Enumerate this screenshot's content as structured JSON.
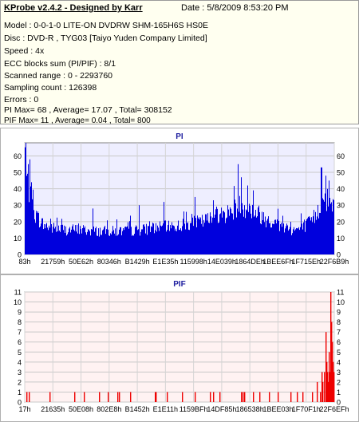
{
  "header": {
    "title": "KProbe v2.4.2 - Designed by Karr",
    "date": "Date : 5/8/2009 8:53:20 PM"
  },
  "info_lines": [
    "Model : 0-0-1-0 LITE-ON DVDRW SHM-165H6S HS0E",
    "Disc : DVD-R , TYG03 [Taiyo Yuden Company Limited]",
    "Speed : 4x",
    "ECC blocks sum (PI/PIF) : 8/1",
    "Scanned range : 0 - 2293760",
    "Sampling count : 126398",
    "Errors : 0",
    "PI Max= 68 , Average= 17.07 , Total= 308152",
    "PIF Max= 11 , Average= 0.04 , Total= 800"
  ],
  "colors": {
    "pi_bars": "#0000dd",
    "pif_bars": "#ee0000",
    "pi_plot_bg": "#eeeeff",
    "pif_plot_bg": "#fff2f2",
    "title_text": "#2020a0"
  },
  "chart_data": [
    {
      "type": "bar",
      "title": "PI",
      "xlabel": "",
      "ylabel": "",
      "ylim": [
        0,
        68
      ],
      "yticks": [
        0,
        10,
        20,
        30,
        40,
        50,
        60
      ],
      "xtick_labels": [
        "83h",
        "21759h",
        "50E62h",
        "80346h",
        "B1429h",
        "E1E35h",
        "115998h",
        "14E039h",
        "1864DEh",
        "1BEE6Fh",
        "1F715Eh",
        "22F6B9h"
      ],
      "max": 68,
      "average": 17.07,
      "grid": true,
      "profile": [
        [
          0.0,
          66
        ],
        [
          0.004,
          48
        ],
        [
          0.012,
          40
        ],
        [
          0.025,
          28
        ],
        [
          0.04,
          24
        ],
        [
          0.06,
          19
        ],
        [
          0.09,
          17
        ],
        [
          0.13,
          16
        ],
        [
          0.18,
          16
        ],
        [
          0.23,
          15
        ],
        [
          0.28,
          15
        ],
        [
          0.33,
          15
        ],
        [
          0.38,
          16
        ],
        [
          0.42,
          17
        ],
        [
          0.47,
          18
        ],
        [
          0.52,
          19
        ],
        [
          0.57,
          21
        ],
        [
          0.62,
          24
        ],
        [
          0.66,
          27
        ],
        [
          0.685,
          30
        ],
        [
          0.7,
          32
        ],
        [
          0.72,
          30
        ],
        [
          0.75,
          27
        ],
        [
          0.78,
          23
        ],
        [
          0.81,
          20
        ],
        [
          0.84,
          17
        ],
        [
          0.87,
          16
        ],
        [
          0.9,
          17
        ],
        [
          0.93,
          22
        ],
        [
          0.955,
          30
        ],
        [
          0.975,
          36
        ],
        [
          0.99,
          34
        ],
        [
          1.0,
          30
        ]
      ],
      "spikes": [
        [
          0.003,
          68
        ],
        [
          0.01,
          55
        ],
        [
          0.02,
          44
        ],
        [
          0.22,
          28
        ],
        [
          0.37,
          30
        ],
        [
          0.45,
          32
        ],
        [
          0.55,
          35
        ],
        [
          0.61,
          33
        ],
        [
          0.69,
          55
        ],
        [
          0.7,
          47
        ],
        [
          0.72,
          42
        ],
        [
          0.96,
          53
        ],
        [
          0.975,
          48
        ],
        [
          0.985,
          45
        ]
      ]
    },
    {
      "type": "bar",
      "title": "PIF",
      "xlabel": "",
      "ylabel": "",
      "ylim": [
        0,
        11
      ],
      "yticks": [
        0,
        1,
        2,
        3,
        4,
        5,
        6,
        7,
        8,
        9,
        10,
        11
      ],
      "xtick_labels": [
        "17h",
        "21635h",
        "50E08h",
        "802E8h",
        "B1452h",
        "E1E11h",
        "1159BFh",
        "14DF85h",
        "186538h",
        "1BEE03h",
        "1F70F1h",
        "22F6EFh"
      ],
      "max": 11,
      "average": 0.04,
      "grid": true,
      "events": [
        [
          0.005,
          1
        ],
        [
          0.014,
          1
        ],
        [
          0.08,
          1
        ],
        [
          0.16,
          1
        ],
        [
          0.19,
          1
        ],
        [
          0.24,
          1
        ],
        [
          0.27,
          1
        ],
        [
          0.3,
          1
        ],
        [
          0.305,
          1
        ],
        [
          0.34,
          1
        ],
        [
          0.42,
          1
        ],
        [
          0.425,
          1
        ],
        [
          0.46,
          1
        ],
        [
          0.51,
          1
        ],
        [
          0.55,
          1
        ],
        [
          0.6,
          1
        ],
        [
          0.61,
          1
        ],
        [
          0.63,
          1
        ],
        [
          0.7,
          1
        ],
        [
          0.705,
          1
        ],
        [
          0.71,
          1
        ],
        [
          0.74,
          1
        ],
        [
          0.76,
          1
        ],
        [
          0.79,
          1
        ],
        [
          0.82,
          1
        ],
        [
          0.86,
          1
        ],
        [
          0.88,
          1
        ],
        [
          0.9,
          1
        ],
        [
          0.93,
          1
        ],
        [
          0.945,
          2
        ],
        [
          0.955,
          1
        ],
        [
          0.96,
          3
        ],
        [
          0.965,
          2
        ],
        [
          0.97,
          3
        ],
        [
          0.973,
          7
        ],
        [
          0.976,
          4
        ],
        [
          0.979,
          3
        ],
        [
          0.982,
          2
        ],
        [
          0.985,
          5
        ],
        [
          0.988,
          3
        ],
        [
          0.99,
          11
        ],
        [
          0.993,
          8
        ],
        [
          0.996,
          6
        ],
        [
          0.998,
          4
        ],
        [
          1.0,
          3
        ]
      ]
    }
  ]
}
